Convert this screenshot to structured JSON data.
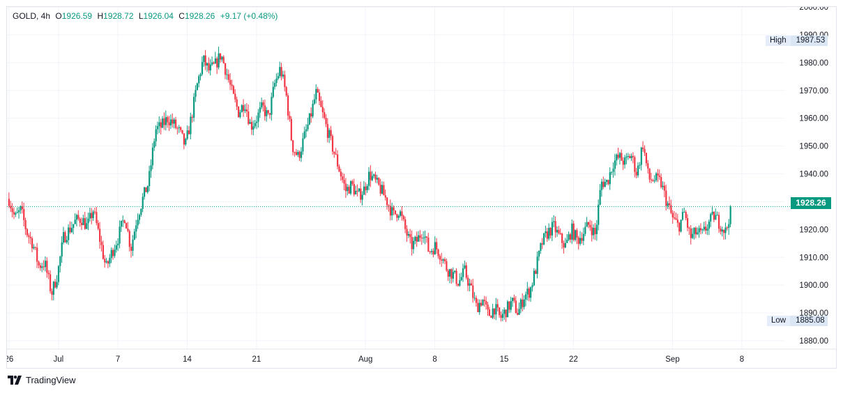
{
  "legend": {
    "symbol": "GOLD, 4h",
    "open_label": "O",
    "open": "1926.59",
    "high_label": "H",
    "high": "1928.72",
    "low_label": "L",
    "low": "1926.04",
    "close_label": "C",
    "close": "1928.26",
    "change": "+9.17 (+0.48%)"
  },
  "high_marker": {
    "label": "High",
    "value": "1987.53"
  },
  "low_marker": {
    "label": "Low",
    "value": "1885.08"
  },
  "last_price": "1928.26",
  "brand": "TradingView",
  "colors": {
    "up": "#089981",
    "down": "#f23645",
    "grid": "#f0f3fa",
    "last_line": "#089981"
  },
  "chart_data": {
    "type": "candlestick",
    "symbol": "GOLD",
    "timeframe": "4h",
    "ylim": [
      1877,
      2000
    ],
    "y_ticks": [
      "1880.00",
      "1890.00",
      "1900.00",
      "1910.00",
      "1920.00",
      "1930.00",
      "1940.00",
      "1950.00",
      "1960.00",
      "1970.00",
      "1980.00",
      "1990.00",
      "2000.00"
    ],
    "x_ticks": [
      {
        "label": "26",
        "day": 0
      },
      {
        "label": "Jul",
        "day": 5
      },
      {
        "label": "7",
        "day": 11
      },
      {
        "label": "14",
        "day": 18
      },
      {
        "label": "21",
        "day": 25
      },
      {
        "label": "Aug",
        "day": 36
      },
      {
        "label": "8",
        "day": 43
      },
      {
        "label": "15",
        "day": 50
      },
      {
        "label": "22",
        "day": 57
      },
      {
        "label": "Sep",
        "day": 67
      },
      {
        "label": "8",
        "day": 74
      }
    ],
    "x_range_days": [
      -0.2,
      78.3
    ],
    "path_close": [
      [
        0,
        1931
      ],
      [
        0.6,
        1924
      ],
      [
        1.2,
        1927
      ],
      [
        1.8,
        1919
      ],
      [
        2.4,
        1915
      ],
      [
        3.0,
        1907
      ],
      [
        3.6,
        1908
      ],
      [
        4.3,
        1897
      ],
      [
        4.9,
        1904
      ],
      [
        5.5,
        1917
      ],
      [
        6.1,
        1920
      ],
      [
        6.7,
        1923
      ],
      [
        7.3,
        1924
      ],
      [
        7.9,
        1921
      ],
      [
        8.5,
        1927
      ],
      [
        9.2,
        1916
      ],
      [
        9.8,
        1906
      ],
      [
        10.4,
        1912
      ],
      [
        11.0,
        1917
      ],
      [
        11.7,
        1925
      ],
      [
        12.3,
        1913
      ],
      [
        12.9,
        1924
      ],
      [
        13.5,
        1931
      ],
      [
        14.1,
        1937
      ],
      [
        14.8,
        1956
      ],
      [
        15.4,
        1957
      ],
      [
        16.0,
        1960
      ],
      [
        16.6,
        1958
      ],
      [
        17.2,
        1955
      ],
      [
        17.8,
        1950
      ],
      [
        18.4,
        1960
      ],
      [
        19.0,
        1972
      ],
      [
        19.6,
        1981
      ],
      [
        20.2,
        1977
      ],
      [
        20.8,
        1979
      ],
      [
        21.4,
        1983
      ],
      [
        22.0,
        1976
      ],
      [
        22.6,
        1968
      ],
      [
        23.2,
        1962
      ],
      [
        23.8,
        1966
      ],
      [
        24.4,
        1957
      ],
      [
        25.0,
        1960
      ],
      [
        25.6,
        1964
      ],
      [
        26.2,
        1960
      ],
      [
        26.8,
        1972
      ],
      [
        27.4,
        1978
      ],
      [
        28.0,
        1968
      ],
      [
        28.6,
        1950
      ],
      [
        29.2,
        1946
      ],
      [
        29.8,
        1953
      ],
      [
        30.4,
        1960
      ],
      [
        31.0,
        1969
      ],
      [
        31.6,
        1962
      ],
      [
        32.2,
        1955
      ],
      [
        32.8,
        1948
      ],
      [
        33.4,
        1941
      ],
      [
        34.0,
        1934
      ],
      [
        34.6,
        1936
      ],
      [
        35.2,
        1932
      ],
      [
        35.8,
        1934
      ],
      [
        36.4,
        1940
      ],
      [
        37.0,
        1937
      ],
      [
        37.6,
        1934
      ],
      [
        38.2,
        1930
      ],
      [
        38.8,
        1925
      ],
      [
        39.4,
        1927
      ],
      [
        40.0,
        1920
      ],
      [
        40.6,
        1914
      ],
      [
        41.2,
        1916
      ],
      [
        41.8,
        1920
      ],
      [
        42.4,
        1912
      ],
      [
        43.0,
        1914
      ],
      [
        43.6,
        1911
      ],
      [
        44.2,
        1906
      ],
      [
        44.8,
        1904
      ],
      [
        45.4,
        1901
      ],
      [
        46.0,
        1905
      ],
      [
        46.6,
        1899
      ],
      [
        47.2,
        1892
      ],
      [
        47.8,
        1895
      ],
      [
        48.4,
        1889
      ],
      [
        49.0,
        1892
      ],
      [
        49.6,
        1888
      ],
      [
        50.2,
        1891
      ],
      [
        50.8,
        1894
      ],
      [
        51.4,
        1890
      ],
      [
        52.0,
        1896
      ],
      [
        52.6,
        1898
      ],
      [
        53.2,
        1906
      ],
      [
        53.8,
        1915
      ],
      [
        54.4,
        1919
      ],
      [
        55.0,
        1921
      ],
      [
        55.6,
        1917
      ],
      [
        56.2,
        1914
      ],
      [
        56.8,
        1920
      ],
      [
        57.4,
        1916
      ],
      [
        58.0,
        1919
      ],
      [
        58.6,
        1922
      ],
      [
        59.2,
        1918
      ],
      [
        59.8,
        1937
      ],
      [
        60.4,
        1937
      ],
      [
        61.0,
        1944
      ],
      [
        61.6,
        1946
      ],
      [
        62.2,
        1944
      ],
      [
        62.8,
        1947
      ],
      [
        63.4,
        1940
      ],
      [
        64.0,
        1951
      ],
      [
        64.6,
        1938
      ],
      [
        65.2,
        1938
      ],
      [
        65.8,
        1937
      ],
      [
        66.4,
        1930
      ],
      [
        67.0,
        1924
      ],
      [
        67.6,
        1921
      ],
      [
        68.2,
        1926
      ],
      [
        68.8,
        1917
      ],
      [
        69.4,
        1919
      ],
      [
        70.0,
        1918
      ],
      [
        70.6,
        1922
      ],
      [
        71.2,
        1925
      ],
      [
        71.8,
        1922
      ],
      [
        72.4,
        1919
      ],
      [
        72.9,
        1928.26
      ]
    ]
  }
}
